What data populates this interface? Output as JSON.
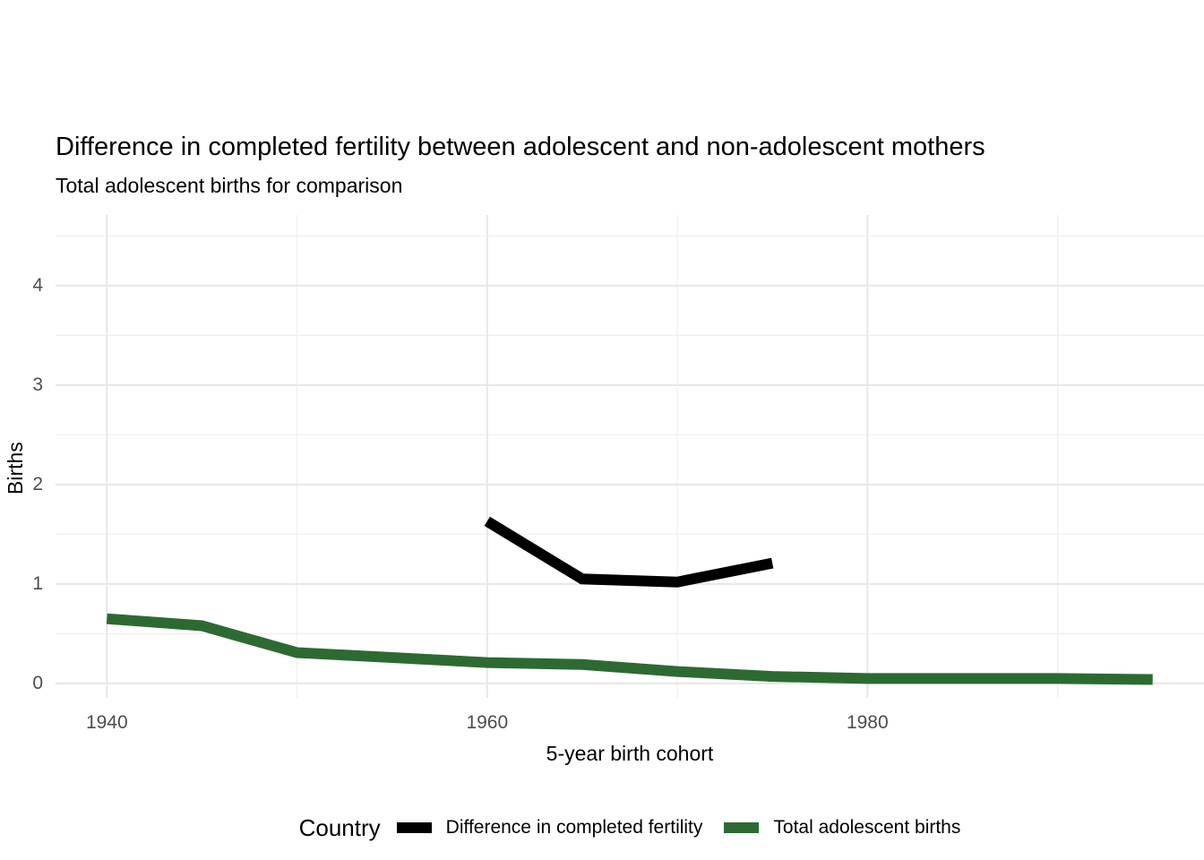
{
  "chart_data": {
    "type": "line",
    "title": "Difference in completed fertility between adolescent and non-adolescent mothers",
    "subtitle": "Total adolescent births for comparison",
    "xlabel": "5-year birth cohort",
    "ylabel": "Births",
    "legend_title": "Country",
    "legend_position": "bottom",
    "grid": true,
    "x_ticks": [
      1940,
      1960,
      1980
    ],
    "x_minor_ticks": [
      1950,
      1970,
      1990
    ],
    "y_ticks": [
      0,
      1,
      2,
      3,
      4
    ],
    "y_minor_ticks": [
      0.5,
      1.5,
      2.5,
      3.5,
      4.5
    ],
    "xlim": [
      1937.3,
      1997.7
    ],
    "ylim": [
      -0.145,
      4.71
    ],
    "series": [
      {
        "name": "Difference in completed fertility",
        "color": "#000000",
        "x": [
          1960,
          1965,
          1970,
          1975
        ],
        "values": [
          1.63,
          1.05,
          1.02,
          1.21
        ]
      },
      {
        "name": "Total adolescent births",
        "color": "#2d6a32",
        "x": [
          1940,
          1945,
          1950,
          1955,
          1960,
          1965,
          1970,
          1975,
          1980,
          1985,
          1990,
          1995
        ],
        "values": [
          0.65,
          0.58,
          0.31,
          0.26,
          0.21,
          0.19,
          0.12,
          0.07,
          0.05,
          0.05,
          0.05,
          0.04
        ]
      }
    ]
  },
  "colors": {
    "grid_major": "#e7e7e7",
    "grid_minor": "#f0f0f0",
    "tick_label": "#4d4d4d",
    "text": "#000000"
  }
}
